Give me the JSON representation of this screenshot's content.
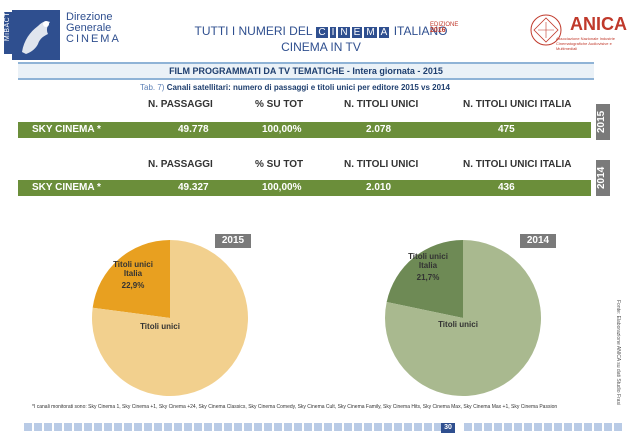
{
  "header": {
    "side_label": "MiBACT",
    "logo_lines": [
      "Direzione",
      "Generale",
      "CINEMA"
    ],
    "title_prefix": "TUTTI I NUMERI DEL",
    "title_cinema_letters": [
      "C",
      "I",
      "N",
      "E",
      "M",
      "A"
    ],
    "title_suffix": "ITALIANO",
    "edition": [
      "EDIZIONE",
      "2016"
    ],
    "subtitle": "CINEMA IN TV",
    "anica": "ANICA",
    "anica_sub": "Associazione Nazionale Industrie Cinematografiche Audiovisive e Multimediali"
  },
  "section": {
    "title": "FILM PROGRAMMATI DA TV TEMATICHE - Intera giornata - 2015",
    "tab_ref": "Tab. 7)",
    "tab_title": "Canali satellitari: numero di passaggi e titoli unici  per editore 2015 vs 2014"
  },
  "columns": [
    "N. PASSAGGI",
    "% SU TOT",
    "N. TITOLI UNICI",
    "N. TITOLI UNICI ITALIA"
  ],
  "rows": [
    {
      "year": "2015",
      "editor": "SKY CINEMA *",
      "passaggi": "49.778",
      "pct": "100,00%",
      "titoli": "2.078",
      "titoli_italia": "475"
    },
    {
      "year": "2014",
      "editor": "SKY CINEMA *",
      "passaggi": "49.327",
      "pct": "100,00%",
      "titoli": "2.010",
      "titoli_italia": "436"
    }
  ],
  "chart_data": [
    {
      "type": "pie",
      "title": "2015",
      "slices": [
        {
          "label": "Titoli unici Italia",
          "value": 22.9,
          "value_label": "22,9%",
          "color": "#e8a020"
        },
        {
          "label": "Titoli unici",
          "value": 77.1,
          "color": "#f2d08e"
        }
      ]
    },
    {
      "type": "pie",
      "title": "2014",
      "slices": [
        {
          "label": "Titoli unici Italia",
          "value": 21.7,
          "value_label": "21,7%",
          "color": "#6e8a55"
        },
        {
          "label": "Titoli unici",
          "value": 78.3,
          "color": "#a9b98f"
        }
      ]
    }
  ],
  "footnote": "*I canali monitorati sono: Sky Cinema 1, Sky Cinema +1, Sky Cinema +24, Sky Cinema Classics, Sky Cinema Comedy, Sky Cinema Cult, Sky Cinema Family, Sky Cinema Hits, Sky Cinema Max, Sky Cinema Max +1, Sky Cinema Passion",
  "source": "Fonte: Elaborazione ANICA su dati Studio Frasi",
  "page_number": "30"
}
